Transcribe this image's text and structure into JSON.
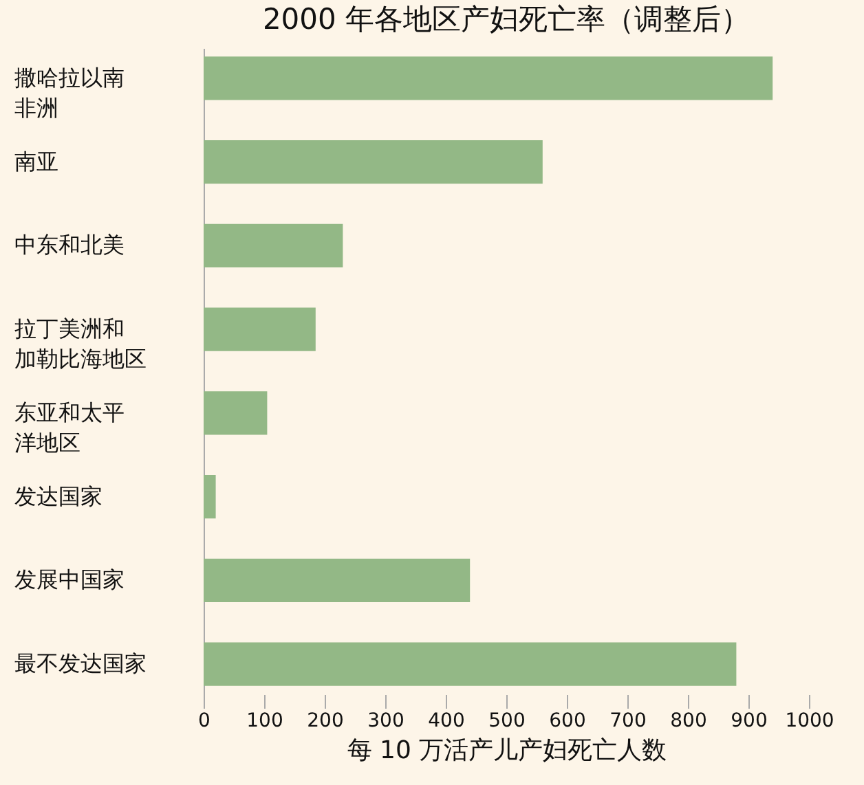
{
  "chart_data": {
    "type": "bar",
    "orientation": "horizontal",
    "title": "2000 年各地区产妇死亡率（调整后）",
    "xlabel": "每 10 万活产儿产妇死亡人数",
    "categories": [
      "撒哈拉以南非洲",
      "南亚",
      "中东和北美",
      "拉丁美洲和加勒比海地区",
      "东亚和太平洋地区",
      "发达国家",
      "发展中国家",
      "最不发达国家"
    ],
    "values": [
      940,
      560,
      230,
      185,
      105,
      20,
      440,
      880
    ],
    "color": "#93b886",
    "xlim": [
      0,
      1000
    ],
    "xticks": [
      0,
      100,
      200,
      300,
      400,
      500,
      600,
      700,
      800,
      900,
      1000
    ],
    "grid": false
  }
}
